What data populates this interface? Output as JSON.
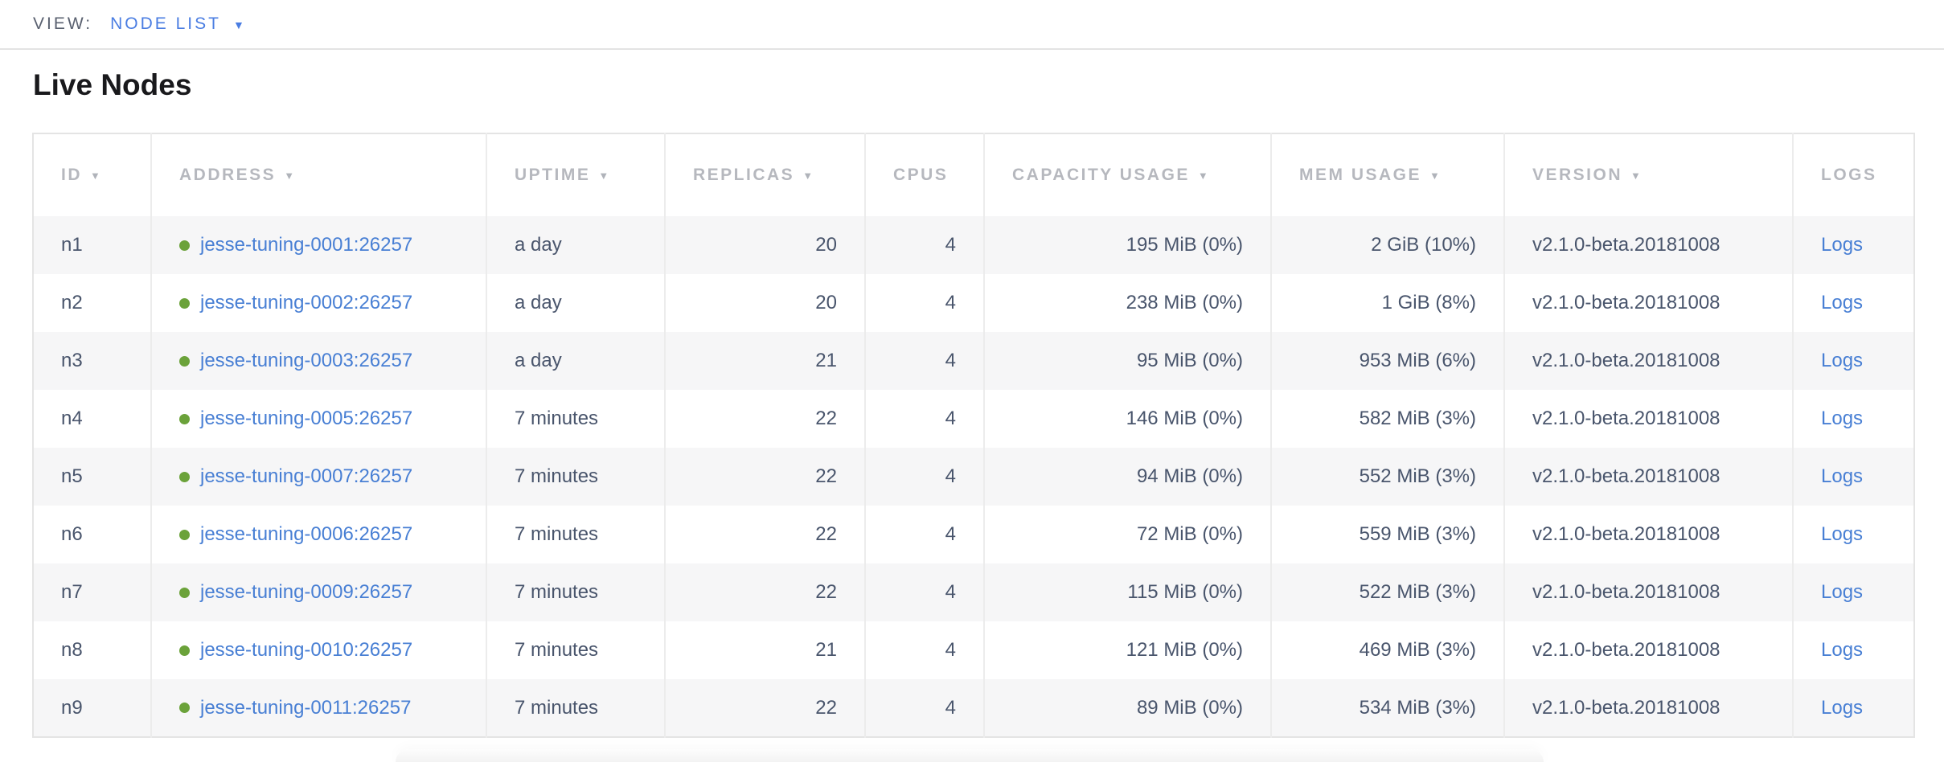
{
  "view_bar": {
    "label": "VIEW:",
    "selected": "NODE LIST",
    "dropdown_icon": "▼"
  },
  "page": {
    "title": "Live Nodes"
  },
  "colors": {
    "accent_blue": "#4a7de2",
    "link_blue": "#487fd4",
    "healthy_green": "#6ba23a"
  },
  "table": {
    "sort_icon": "▼",
    "logs_label": "Logs",
    "columns": [
      {
        "key": "id",
        "label": "ID",
        "sortable": true
      },
      {
        "key": "address",
        "label": "ADDRESS",
        "sortable": true
      },
      {
        "key": "uptime",
        "label": "UPTIME",
        "sortable": true
      },
      {
        "key": "replicas",
        "label": "REPLICAS",
        "sortable": true
      },
      {
        "key": "cpus",
        "label": "CPUS",
        "sortable": false
      },
      {
        "key": "capacity",
        "label": "CAPACITY USAGE",
        "sortable": true
      },
      {
        "key": "mem",
        "label": "MEM USAGE",
        "sortable": true
      },
      {
        "key": "version",
        "label": "VERSION",
        "sortable": true
      },
      {
        "key": "logs",
        "label": "LOGS",
        "sortable": false
      }
    ],
    "rows": [
      {
        "id": "n1",
        "status": "healthy",
        "address": "jesse-tuning-0001:26257",
        "uptime": "a day",
        "replicas": "20",
        "cpus": "4",
        "capacity": "195 MiB (0%)",
        "mem": "2 GiB (10%)",
        "version": "v2.1.0-beta.20181008"
      },
      {
        "id": "n2",
        "status": "healthy",
        "address": "jesse-tuning-0002:26257",
        "uptime": "a day",
        "replicas": "20",
        "cpus": "4",
        "capacity": "238 MiB (0%)",
        "mem": "1 GiB (8%)",
        "version": "v2.1.0-beta.20181008"
      },
      {
        "id": "n3",
        "status": "healthy",
        "address": "jesse-tuning-0003:26257",
        "uptime": "a day",
        "replicas": "21",
        "cpus": "4",
        "capacity": "95 MiB (0%)",
        "mem": "953 MiB (6%)",
        "version": "v2.1.0-beta.20181008"
      },
      {
        "id": "n4",
        "status": "healthy",
        "address": "jesse-tuning-0005:26257",
        "uptime": "7 minutes",
        "replicas": "22",
        "cpus": "4",
        "capacity": "146 MiB (0%)",
        "mem": "582 MiB (3%)",
        "version": "v2.1.0-beta.20181008"
      },
      {
        "id": "n5",
        "status": "healthy",
        "address": "jesse-tuning-0007:26257",
        "uptime": "7 minutes",
        "replicas": "22",
        "cpus": "4",
        "capacity": "94 MiB (0%)",
        "mem": "552 MiB (3%)",
        "version": "v2.1.0-beta.20181008"
      },
      {
        "id": "n6",
        "status": "healthy",
        "address": "jesse-tuning-0006:26257",
        "uptime": "7 minutes",
        "replicas": "22",
        "cpus": "4",
        "capacity": "72 MiB (0%)",
        "mem": "559 MiB (3%)",
        "version": "v2.1.0-beta.20181008"
      },
      {
        "id": "n7",
        "status": "healthy",
        "address": "jesse-tuning-0009:26257",
        "uptime": "7 minutes",
        "replicas": "22",
        "cpus": "4",
        "capacity": "115 MiB (0%)",
        "mem": "522 MiB (3%)",
        "version": "v2.1.0-beta.20181008"
      },
      {
        "id": "n8",
        "status": "healthy",
        "address": "jesse-tuning-0010:26257",
        "uptime": "7 minutes",
        "replicas": "21",
        "cpus": "4",
        "capacity": "121 MiB (0%)",
        "mem": "469 MiB (3%)",
        "version": "v2.1.0-beta.20181008"
      },
      {
        "id": "n9",
        "status": "healthy",
        "address": "jesse-tuning-0011:26257",
        "uptime": "7 minutes",
        "replicas": "22",
        "cpus": "4",
        "capacity": "89 MiB (0%)",
        "mem": "534 MiB (3%)",
        "version": "v2.1.0-beta.20181008"
      }
    ]
  }
}
